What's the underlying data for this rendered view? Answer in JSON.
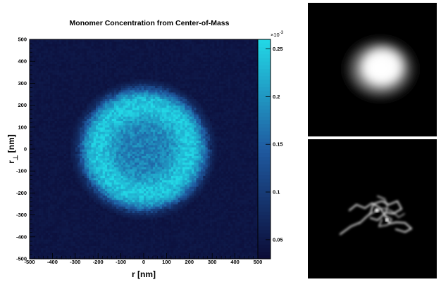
{
  "chart_data": [
    {
      "type": "heatmap",
      "title": "Monomer Concentration from Center-of-Mass",
      "xlabel": "r [nm]",
      "ylabel_main": "r",
      "ylabel_sub": "⊥",
      "ylabel_unit": "[nm]",
      "xlim": [
        -500,
        500
      ],
      "ylim": [
        -500,
        500
      ],
      "x_ticks": [
        -500,
        -400,
        -300,
        -200,
        -100,
        0,
        100,
        200,
        300,
        400,
        500
      ],
      "y_ticks": [
        -500,
        -400,
        -300,
        -200,
        -100,
        0,
        100,
        200,
        300,
        400,
        500
      ],
      "distribution": {
        "center": [
          0,
          0
        ],
        "shell_peak_radius": 200,
        "outer_radius": 280,
        "background": 0.045,
        "shell_max": 0.245,
        "core_value": 0.18
      },
      "colorbar": {
        "exponent_label": "×10",
        "exponent_power": "-3",
        "range": [
          0.03,
          0.26
        ],
        "ticks": [
          "0.05",
          "0.1",
          "0.15",
          "0.2",
          "0.25"
        ],
        "tick_values": [
          0.05,
          0.1,
          0.15,
          0.2,
          0.25
        ]
      },
      "colors": {
        "low": "#0b0b36",
        "mid": "#1f5aa0",
        "high": "#22d8e6"
      }
    },
    {
      "type": "image",
      "panels": [
        "blurred-density",
        "polymer-conformation"
      ],
      "background": "#000000"
    }
  ]
}
